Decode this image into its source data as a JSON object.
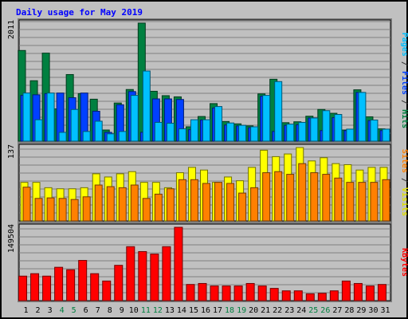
{
  "chart_data": {
    "type": "bar",
    "title": "Daily usage for May 2019",
    "categories": [
      "1",
      "2",
      "3",
      "4",
      "5",
      "6",
      "7",
      "8",
      "9",
      "10",
      "11",
      "12",
      "13",
      "14",
      "15",
      "16",
      "17",
      "18",
      "19",
      "20",
      "21",
      "22",
      "23",
      "24",
      "25",
      "26",
      "27",
      "28",
      "29",
      "30",
      "31"
    ],
    "weekend_days": [
      "4",
      "5",
      "11",
      "12",
      "18",
      "19",
      "25",
      "26"
    ],
    "panels": [
      {
        "max_label": "2011",
        "ymax": 2011,
        "legend": [
          {
            "text": "Pages",
            "color": "#00c0ff"
          },
          {
            "text": " / ",
            "color": "#333333"
          },
          {
            "text": "Files",
            "color": "#0040ff"
          },
          {
            "text": " / ",
            "color": "#333333"
          },
          {
            "text": "Hits",
            "color": "#008040"
          }
        ],
        "series": [
          {
            "name": "Hits",
            "color": "#008040",
            "values": [
              1545,
              1030,
              1500,
              550,
              1135,
              810,
              715,
              190,
              650,
              880,
              2011,
              850,
              775,
              755,
              245,
              420,
              640,
              335,
              295,
              260,
              805,
              1055,
              315,
              330,
              425,
              540,
              475,
              190,
              875,
              415,
              210
            ]
          },
          {
            "name": "Files",
            "color": "#0040ff",
            "values": [
              780,
              790,
              810,
              820,
              740,
              820,
              510,
              150,
              620,
              845,
              150,
              720,
              720,
              710,
              195,
              360,
              565,
              275,
              260,
              230,
              765,
              165,
              270,
              280,
              395,
              180,
              400,
              180,
              830,
              350,
              180
            ]
          },
          {
            "name": "Pages",
            "color": "#00c0ff",
            "values": [
              820,
              365,
              820,
              150,
              540,
              165,
              340,
              125,
              165,
              780,
              1195,
              320,
              305,
              210,
              365,
              365,
              590,
              310,
              270,
              245,
              780,
              1015,
              290,
              320,
              395,
              520,
              455,
              205,
              830,
              360,
              205
            ]
          }
        ]
      },
      {
        "max_label": "137",
        "ymax": 137,
        "legend": [
          {
            "text": "Sites",
            "color": "#ff8000"
          },
          {
            "text": " / ",
            "color": "#333333"
          },
          {
            "text": "Visits",
            "color": "#e0e000"
          }
        ],
        "series": [
          {
            "name": "Visits",
            "color": "#ffff00",
            "values": [
              72,
              72,
              62,
              60,
              60,
              62,
              88,
              82,
              88,
              92,
              72,
              72,
              62,
              90,
              100,
              95,
              72,
              82,
              75,
              100,
              132,
              120,
              125,
              137,
              112,
              118,
              107,
              105,
              95,
              100,
              100
            ]
          },
          {
            "name": "Sites",
            "color": "#ff8000",
            "values": [
              63,
              42,
              43,
              42,
              40,
              45,
              67,
              64,
              62,
              67,
              42,
              50,
              60,
              77,
              77,
              70,
              72,
              70,
              52,
              62,
              90,
              92,
              87,
              107,
              90,
              87,
              80,
              72,
              72,
              72,
              77
            ]
          }
        ]
      },
      {
        "max_label": "149504",
        "ymax": 149504,
        "legend": [
          {
            "text": "KBytes",
            "color": "#ff0000"
          }
        ],
        "series": [
          {
            "name": "KBytes",
            "color": "#ff0000",
            "values": [
              50000,
              55000,
              50000,
              68000,
              63000,
              82000,
              55000,
              40000,
              72000,
              110000,
              100000,
              95000,
              110000,
              149504,
              33000,
              35000,
              30000,
              30000,
              30000,
              35000,
              30000,
              25000,
              20000,
              20000,
              14000,
              15000,
              20000,
              40000,
              35000,
              30000,
              33000
            ]
          }
        ]
      }
    ]
  }
}
